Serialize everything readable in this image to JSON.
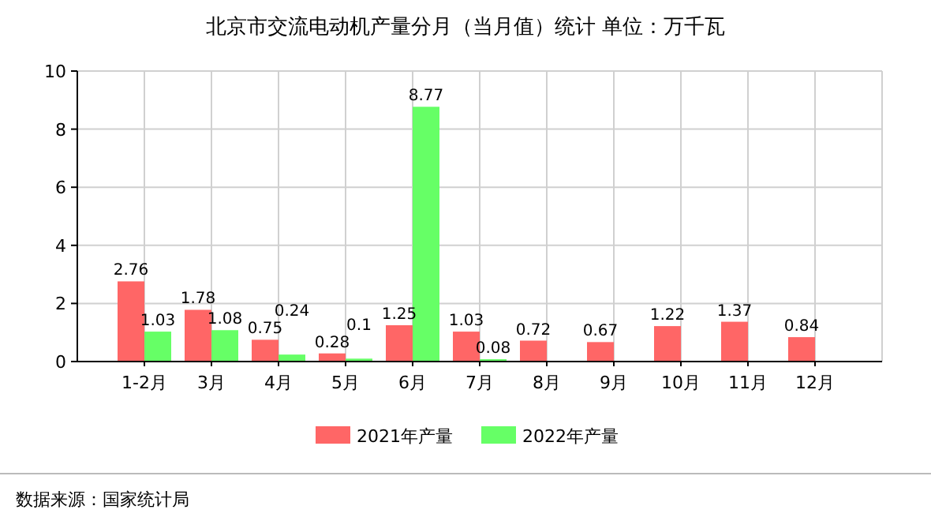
{
  "chart_data": {
    "type": "bar",
    "title": "北京市交流电动机产量分月（当月值）统计 单位：万千瓦",
    "categories": [
      "1-2月",
      "3月",
      "4月",
      "5月",
      "6月",
      "7月",
      "8月",
      "9月",
      "10月",
      "11月",
      "12月"
    ],
    "series": [
      {
        "name": "2021年产量",
        "color": "#ff6666",
        "values": [
          2.76,
          1.78,
          0.75,
          0.28,
          1.25,
          1.03,
          0.72,
          0.67,
          1.22,
          1.37,
          0.84
        ]
      },
      {
        "name": "2022年产量",
        "color": "#66ff66",
        "values": [
          1.03,
          1.08,
          0.24,
          0.1,
          8.77,
          0.08,
          null,
          null,
          null,
          null,
          null
        ]
      }
    ],
    "ylim": [
      0,
      10
    ],
    "yticks": [
      0,
      2,
      4,
      6,
      8,
      10
    ],
    "grid": true,
    "legend": "bottom",
    "data_labels": true,
    "annotations": [
      "数据来源：国家统计局"
    ]
  }
}
